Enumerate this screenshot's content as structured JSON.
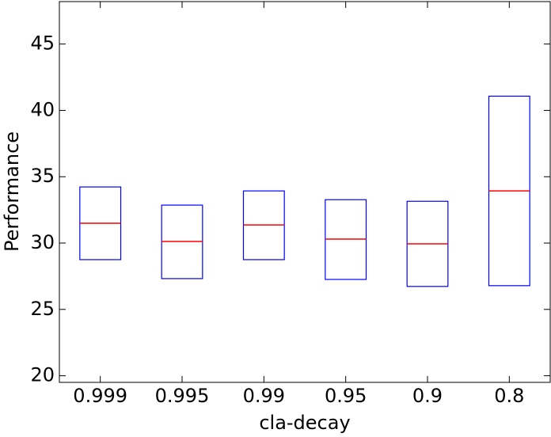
{
  "chart_data": {
    "type": "box",
    "xlabel": "cla-decay",
    "ylabel": "Performance",
    "categories": [
      "0.999",
      "0.995",
      "0.99",
      "0.95",
      "0.9",
      "0.8"
    ],
    "q1": [
      28.75,
      27.32,
      28.75,
      27.26,
      26.73,
      26.79
    ],
    "median": [
      31.49,
      30.12,
      31.37,
      30.3,
      29.94,
      33.93
    ],
    "q3": [
      34.23,
      32.86,
      33.93,
      33.27,
      33.15,
      41.07
    ],
    "color": "#0000ff",
    "median_color": "#ff0000",
    "ylim": [
      19.5,
      48.2
    ],
    "yticks": [
      20,
      25,
      30,
      35,
      40,
      45
    ]
  }
}
